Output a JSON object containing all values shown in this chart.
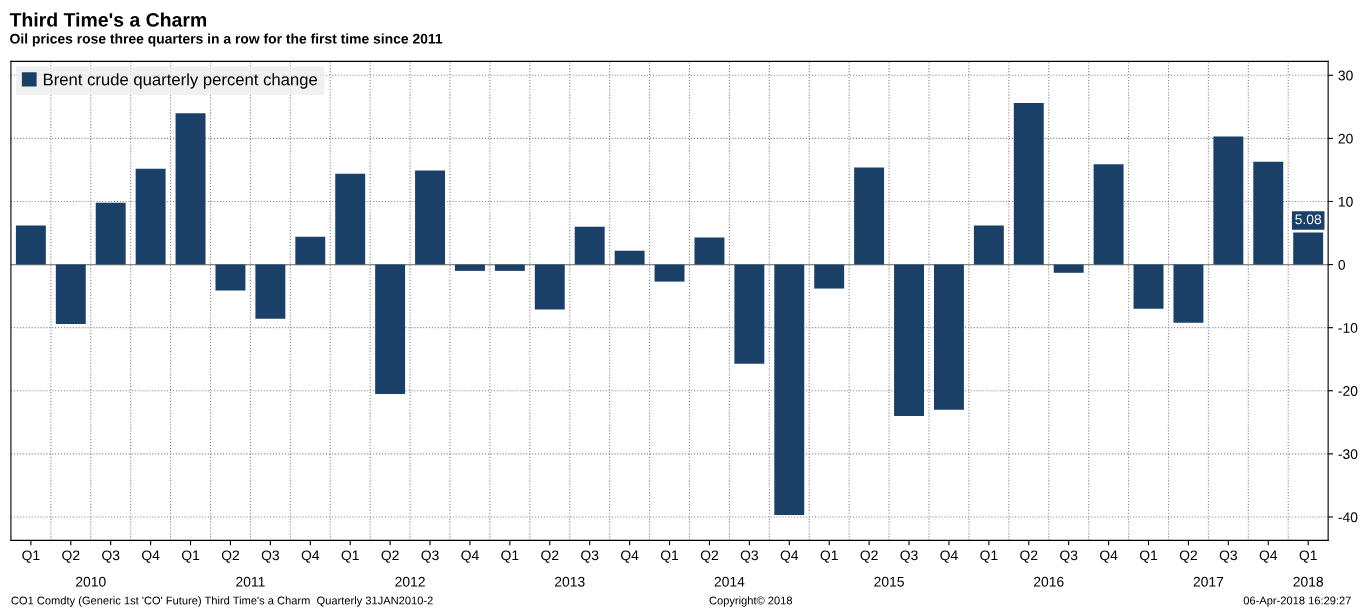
{
  "chart_data": {
    "type": "bar",
    "title": "Third Time's a Charm",
    "subtitle": "Oil prices rose three quarters in a row for the first time since 2011",
    "categories": [
      "Q1",
      "Q2",
      "Q3",
      "Q4",
      "Q1",
      "Q2",
      "Q3",
      "Q4",
      "Q1",
      "Q2",
      "Q3",
      "Q4",
      "Q1",
      "Q2",
      "Q3",
      "Q4",
      "Q1",
      "Q2",
      "Q3",
      "Q4",
      "Q1",
      "Q2",
      "Q3",
      "Q4",
      "Q1",
      "Q2",
      "Q3",
      "Q4",
      "Q1",
      "Q2",
      "Q3",
      "Q4",
      "Q1"
    ],
    "series": [
      {
        "name": "Brent crude quarterly percent change",
        "color": "#1b4068",
        "values": [
          6.2,
          -9.4,
          9.8,
          15.2,
          24.0,
          -4.1,
          -8.6,
          4.4,
          14.4,
          -20.5,
          14.9,
          -1.0,
          -1.0,
          -7.1,
          6.0,
          2.2,
          -2.7,
          4.3,
          -15.7,
          -39.7,
          -3.8,
          15.4,
          -24.0,
          -23.0,
          6.2,
          25.6,
          -1.3,
          15.9,
          -7.0,
          -9.2,
          20.3,
          16.3,
          5.08
        ],
        "value_labels": [
          null,
          null,
          null,
          null,
          null,
          null,
          null,
          null,
          null,
          null,
          null,
          null,
          null,
          null,
          null,
          null,
          null,
          null,
          null,
          null,
          null,
          null,
          null,
          null,
          null,
          null,
          null,
          null,
          null,
          null,
          null,
          null,
          "5.08"
        ]
      }
    ],
    "ylim": [
      -43.7,
      32.2
    ],
    "yticks": [
      -40,
      -30,
      -20,
      -10,
      0,
      10,
      20,
      30
    ],
    "grid": true,
    "legend": "top left",
    "annotations": [
      "2010",
      "2011",
      "2012",
      "2013",
      "2014",
      "2015",
      "2016",
      "2017",
      "2018",
      "CO1 Comdty (Generic 1st 'CO' Future) Third Time's a Charm  Quarterly 31JAN2010-2",
      "Copyright© 2018",
      "06-Apr-2018 16:29:27"
    ]
  }
}
